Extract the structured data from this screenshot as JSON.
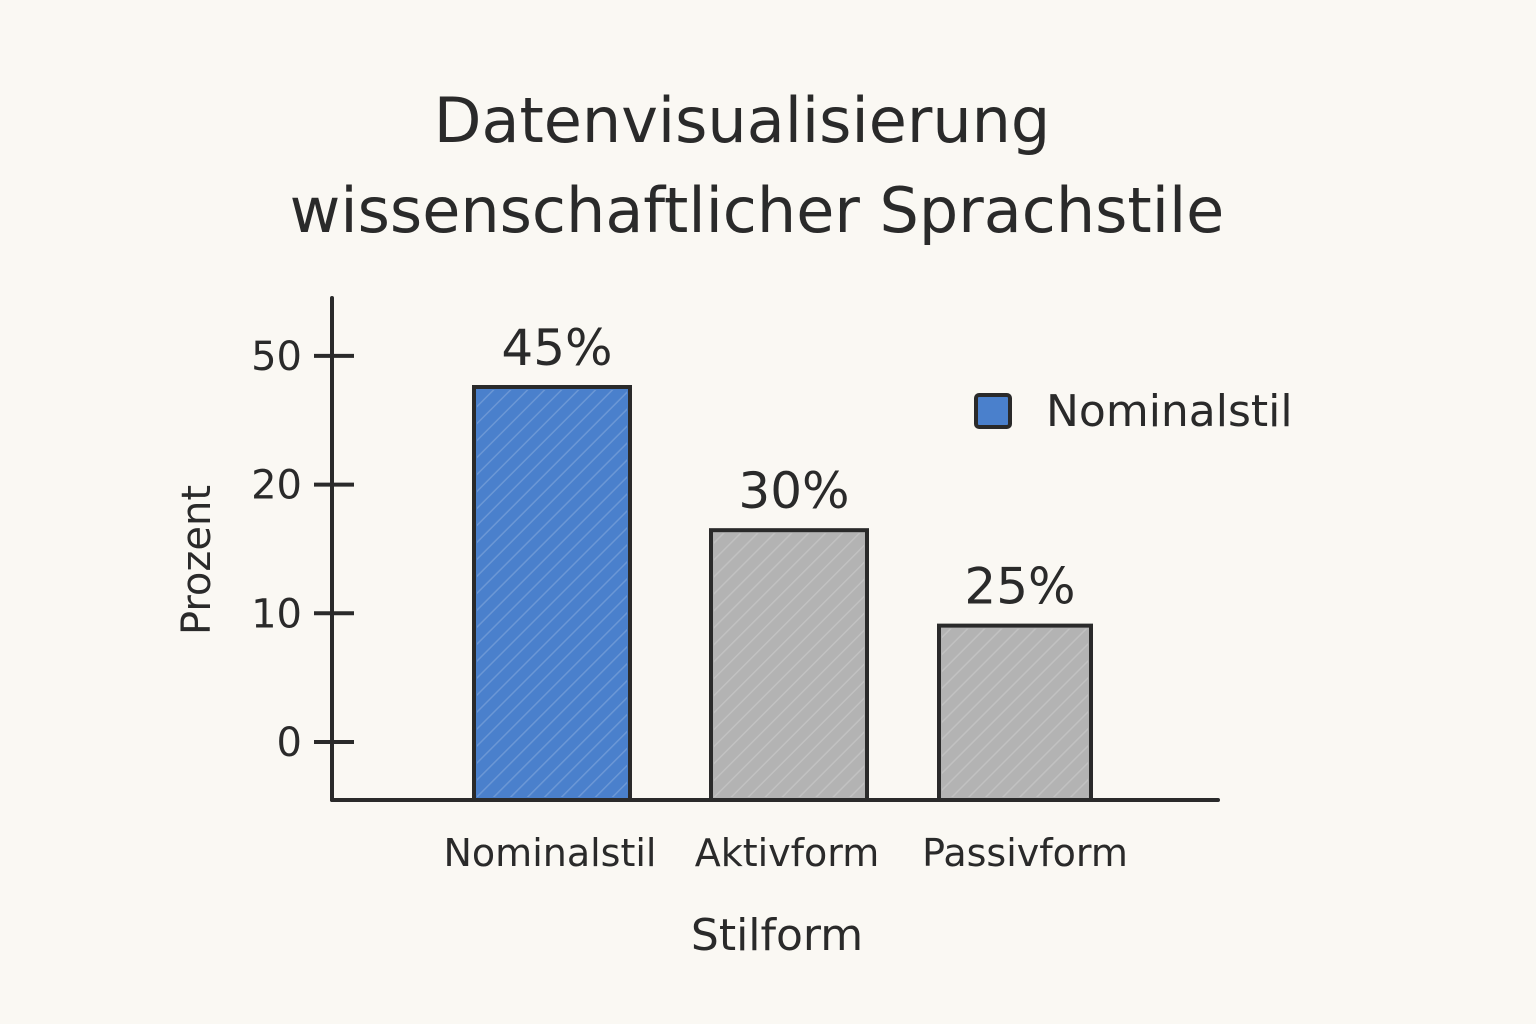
{
  "chart_data": {
    "type": "bar",
    "title": [
      "Datenvisualisierung",
      "wissenschaftlicher Sprachstile"
    ],
    "xlabel": "Stilform",
    "ylabel": "Prozent",
    "categories": [
      "Nominalstil",
      "Aktivform",
      "Passivform"
    ],
    "values": [
      45,
      30,
      25
    ],
    "data_labels": [
      "45%",
      "30%",
      "25%"
    ],
    "yticks": [
      0,
      10,
      20,
      50
    ],
    "ylim": [
      0,
      50
    ],
    "grid": false,
    "legend": {
      "entries": [
        "Nominalstil"
      ],
      "placement": "top-right"
    },
    "colors": {
      "highlight": "#4a80cc",
      "other": "#b3b3b3",
      "outline": "#2a2a2a",
      "background": "#faf8f3"
    }
  }
}
